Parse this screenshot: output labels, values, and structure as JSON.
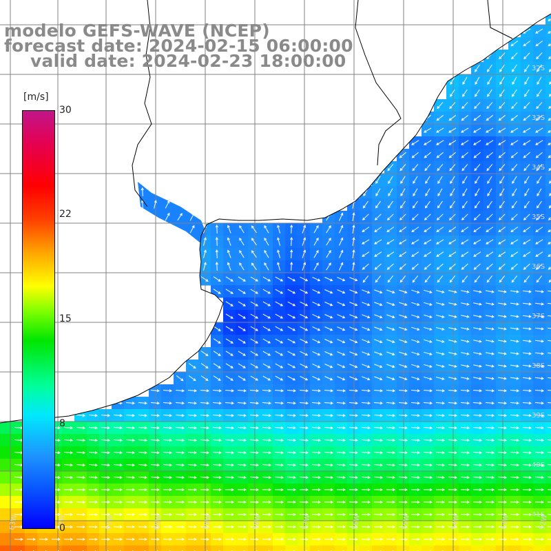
{
  "title": {
    "line1": "modelo GEFS-WAVE (NCEP)",
    "line2": "forecast date: 2024-02-15 06:00:00",
    "line3": "valid date: 2024-02-23 18:00:00"
  },
  "colorbar": {
    "unit": "[m/s]",
    "ticks": [
      "30",
      "22",
      "15",
      "8",
      "0"
    ],
    "tick_values": [
      30,
      22,
      15,
      8,
      0
    ],
    "range": [
      0,
      30
    ],
    "colors": [
      "#0000ff",
      "#1e90ff",
      "#00e8ff",
      "#00e600",
      "#ffff00",
      "#ffa500",
      "#ff0000",
      "#c0168a"
    ]
  },
  "map": {
    "variable": "wind speed and direction",
    "region": "Rio de la Plata / southern Brazil coast",
    "lat_labels": [
      "32S",
      "33S",
      "34S",
      "35S",
      "36S",
      "37S",
      "38S",
      "39S",
      "40S",
      "41S"
    ],
    "lon_labels": [
      "63W",
      "62W",
      "61W",
      "60W",
      "59W",
      "58W",
      "57W",
      "56W",
      "55W",
      "54W",
      "53W",
      "52W"
    ],
    "land_color": "#ffffff",
    "grid_color": "#808080",
    "coast_color": "#000000",
    "arrow_color": "#ffffff"
  }
}
